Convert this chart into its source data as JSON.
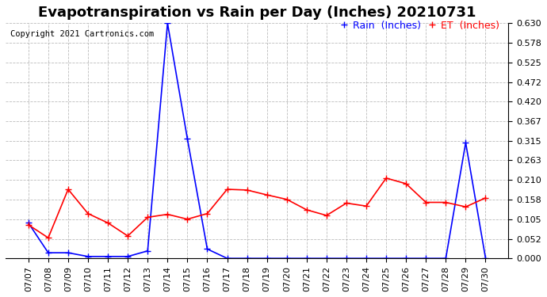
{
  "title": "Evapotranspiration vs Rain per Day (Inches) 20210731",
  "copyright": "Copyright 2021 Cartronics.com",
  "dates": [
    "07/07",
    "07/08",
    "07/09",
    "07/10",
    "07/11",
    "07/12",
    "07/13",
    "07/14",
    "07/15",
    "07/16",
    "07/17",
    "07/18",
    "07/19",
    "07/20",
    "07/21",
    "07/22",
    "07/23",
    "07/24",
    "07/25",
    "07/26",
    "07/27",
    "07/28",
    "07/29",
    "07/30"
  ],
  "rain": [
    0.095,
    0.015,
    0.015,
    0.005,
    0.005,
    0.005,
    0.02,
    0.63,
    0.32,
    0.025,
    0.0,
    0.0,
    0.0,
    0.0,
    0.0,
    0.0,
    0.0,
    0.0,
    0.0,
    0.0,
    0.0,
    0.0,
    0.31,
    0.0
  ],
  "et": [
    0.09,
    0.055,
    0.185,
    0.12,
    0.095,
    0.06,
    0.11,
    0.118,
    0.105,
    0.12,
    0.185,
    0.183,
    0.17,
    0.158,
    0.13,
    0.115,
    0.148,
    0.14,
    0.215,
    0.2,
    0.15,
    0.15,
    0.138,
    0.162
  ],
  "rain_color": "#0000FF",
  "et_color": "#FF0000",
  "background_color": "#FFFFFF",
  "grid_color": "#AAAAAA",
  "ylim": [
    0,
    0.63
  ],
  "yticks": [
    0.0,
    0.052,
    0.105,
    0.158,
    0.21,
    0.263,
    0.315,
    0.367,
    0.42,
    0.472,
    0.525,
    0.578,
    0.63
  ],
  "title_fontsize": 13,
  "legend_rain": "Rain  (Inches)",
  "legend_et": "ET  (Inches)",
  "marker": "+",
  "markersize": 6,
  "linewidth": 1.2
}
